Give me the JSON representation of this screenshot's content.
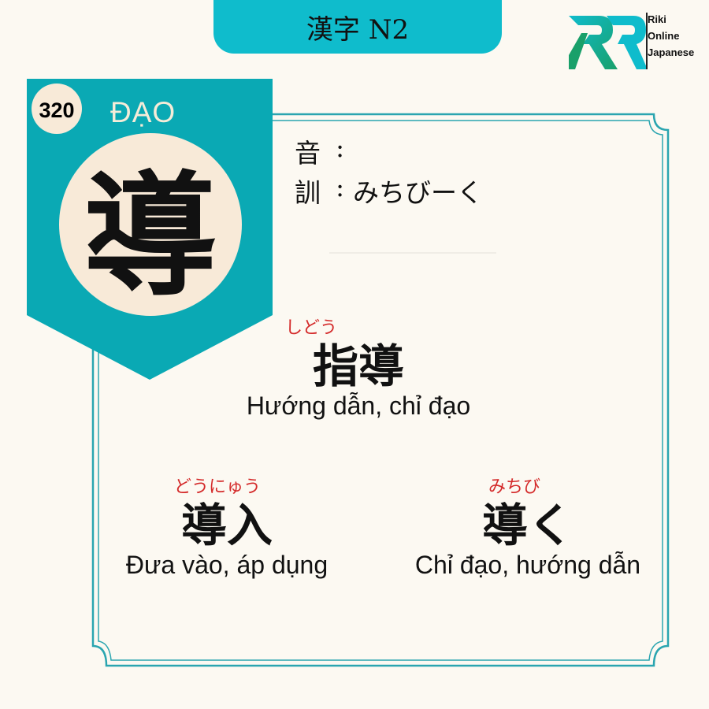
{
  "header": {
    "title": "漢字 N2"
  },
  "brand": {
    "lines": [
      "Riki",
      "Online",
      "Japanese"
    ]
  },
  "kanji": {
    "number": "320",
    "han_viet": "ĐẠO",
    "character": "導",
    "on_label": "音",
    "on_reading": "",
    "kun_label": "訓",
    "kun_reading": "みちびーく"
  },
  "vocab": [
    {
      "furigana": "しどう",
      "word": "指導",
      "meaning": "Hướng dẫn, chỉ đạo"
    },
    {
      "furigana": "どうにゅう",
      "word": "導入",
      "meaning": "Đưa vào, áp dụng"
    },
    {
      "furigana": "みちび",
      "word": "導く",
      "meaning": "Chỉ đạo, hướng dẫn"
    }
  ],
  "colors": {
    "teal": "#0fbccc",
    "banner": "#0aa9b4",
    "frame": "#2aa5b0",
    "circle": "#f8ead8",
    "accent_red": "#d42a2a",
    "background": "#fcf9f2"
  }
}
